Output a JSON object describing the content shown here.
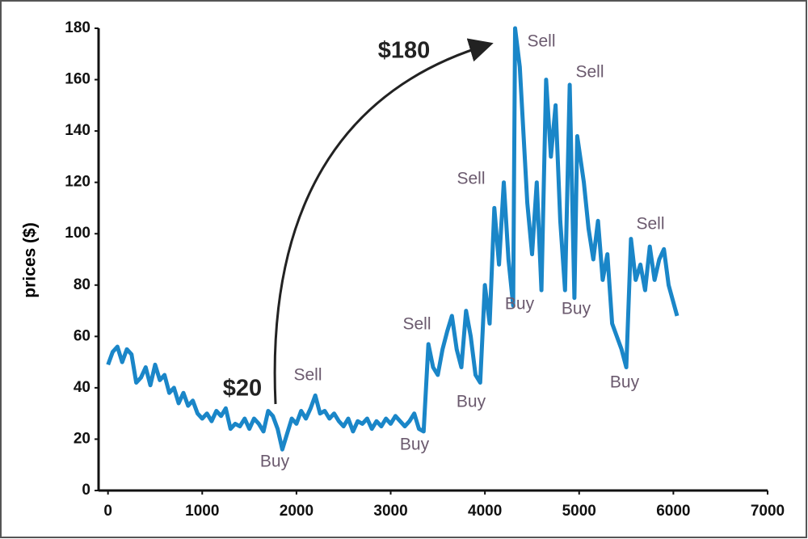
{
  "chart_data": {
    "type": "line",
    "y_label": "prices ($)",
    "x": [
      0,
      50,
      100,
      150,
      200,
      250,
      300,
      350,
      400,
      450,
      500,
      550,
      600,
      650,
      700,
      750,
      800,
      850,
      900,
      950,
      1000,
      1050,
      1100,
      1150,
      1200,
      1250,
      1300,
      1350,
      1400,
      1450,
      1500,
      1550,
      1600,
      1650,
      1700,
      1750,
      1800,
      1850,
      1900,
      1950,
      2000,
      2050,
      2100,
      2150,
      2200,
      2250,
      2300,
      2350,
      2400,
      2450,
      2500,
      2550,
      2600,
      2650,
      2700,
      2750,
      2800,
      2850,
      2900,
      2950,
      3000,
      3050,
      3100,
      3150,
      3200,
      3250,
      3300,
      3350,
      3400,
      3450,
      3500,
      3550,
      3600,
      3650,
      3700,
      3750,
      3800,
      3850,
      3900,
      3950,
      4000,
      4050,
      4100,
      4150,
      4200,
      4250,
      4300,
      4320,
      4370,
      4450,
      4500,
      4550,
      4600,
      4650,
      4700,
      4750,
      4800,
      4850,
      4900,
      4950,
      4980,
      5050,
      5100,
      5150,
      5200,
      5250,
      5300,
      5350,
      5400,
      5450,
      5500,
      5550,
      5600,
      5650,
      5700,
      5750,
      5800,
      5850,
      5900,
      5950,
      6040
    ],
    "series": [
      {
        "name": "price",
        "color": "#1a86c8",
        "values": [
          49,
          54,
          56,
          50,
          55,
          53,
          42,
          44,
          48,
          41,
          49,
          43,
          45,
          38,
          40,
          34,
          38,
          33,
          35,
          30,
          28,
          30,
          27,
          31,
          29,
          32,
          24,
          26,
          25,
          28,
          24,
          28,
          26,
          23,
          31,
          29,
          24,
          16,
          22,
          28,
          26,
          31,
          28,
          32,
          37,
          30,
          31,
          28,
          30,
          27,
          25,
          28,
          23,
          27,
          26,
          28,
          24,
          27,
          25,
          28,
          26,
          29,
          27,
          25,
          27,
          30,
          24,
          23,
          57,
          48,
          45,
          55,
          62,
          68,
          55,
          48,
          70,
          60,
          45,
          42,
          80,
          65,
          110,
          88,
          120,
          90,
          72,
          180,
          165,
          112,
          92,
          120,
          78,
          160,
          130,
          150,
          105,
          78,
          158,
          75,
          138,
          120,
          102,
          90,
          105,
          82,
          92,
          65,
          60,
          55,
          48,
          98,
          82,
          88,
          78,
          95,
          82,
          90,
          94,
          80,
          68
        ]
      }
    ],
    "annotations": [
      "$20",
      "$180",
      "Buy",
      "Sell",
      "Buy",
      "Sell",
      "Buy",
      "Sell",
      "Buy",
      "Sell",
      "Buy",
      "Sell",
      "Buy",
      "Sell"
    ],
    "xlim": [
      -100,
      7000
    ],
    "ylim": [
      0,
      180
    ],
    "xticks": [
      0,
      1000,
      2000,
      3000,
      4000,
      5000,
      6000,
      7000
    ],
    "yticks": [
      0,
      20,
      40,
      60,
      80,
      100,
      120,
      140,
      160,
      180
    ]
  }
}
